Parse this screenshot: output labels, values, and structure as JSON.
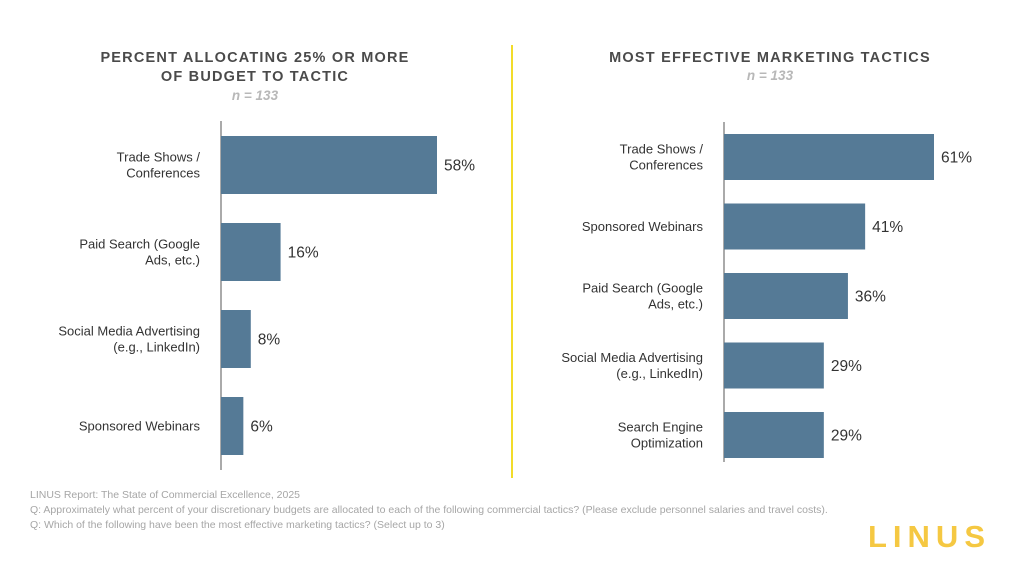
{
  "chart_data": [
    {
      "type": "bar",
      "orientation": "horizontal",
      "title": "PERCENT ALLOCATING 25% OR MORE OF BUDGET TO TACTIC",
      "title_lines": [
        "PERCENT ALLOCATING 25% OR MORE",
        "OF BUDGET TO TACTIC"
      ],
      "subtitle": "n = 133",
      "categories": [
        [
          "Trade Shows /",
          "Conferences"
        ],
        [
          "Paid Search (Google",
          "Ads, etc.)"
        ],
        [
          "Social Media Advertising",
          "(e.g., LinkedIn)"
        ],
        [
          "Sponsored Webinars"
        ]
      ],
      "values": [
        58,
        16,
        8,
        6
      ],
      "value_labels": [
        "58%",
        "16%",
        "8%",
        "6%"
      ],
      "xlim": [
        0,
        100
      ],
      "grid": false,
      "color": "#557a96"
    },
    {
      "type": "bar",
      "orientation": "horizontal",
      "title": "MOST EFFECTIVE MARKETING TACTICS",
      "title_lines": [
        "MOST EFFECTIVE MARKETING TACTICS"
      ],
      "subtitle": "n = 133",
      "categories": [
        [
          "Trade Shows /",
          "Conferences"
        ],
        [
          "Sponsored Webinars"
        ],
        [
          "Paid Search (Google",
          "Ads, etc.)"
        ],
        [
          "Social Media Advertising",
          "(e.g., LinkedIn)"
        ],
        [
          "Search Engine",
          "Optimization"
        ]
      ],
      "values": [
        61,
        41,
        36,
        29,
        29
      ],
      "value_labels": [
        "61%",
        "41%",
        "36%",
        "29%",
        "29%"
      ],
      "xlim": [
        0,
        100
      ],
      "grid": false,
      "color": "#557a96"
    }
  ],
  "footer": {
    "source": "LINUS Report: The State of Commercial Excellence, 2025",
    "q1": "Q:  Approximately what percent of your discretionary budgets are allocated to each of the following commercial tactics? (Please exclude personnel salaries and travel costs).",
    "q2": "Q:  Which of the following have been the most effective marketing tactics? (Select up to 3)"
  },
  "logo_text": "LINUS",
  "colors": {
    "bar": "#557a96",
    "divider": "#f2dc2a",
    "logo": "#f5c842"
  }
}
